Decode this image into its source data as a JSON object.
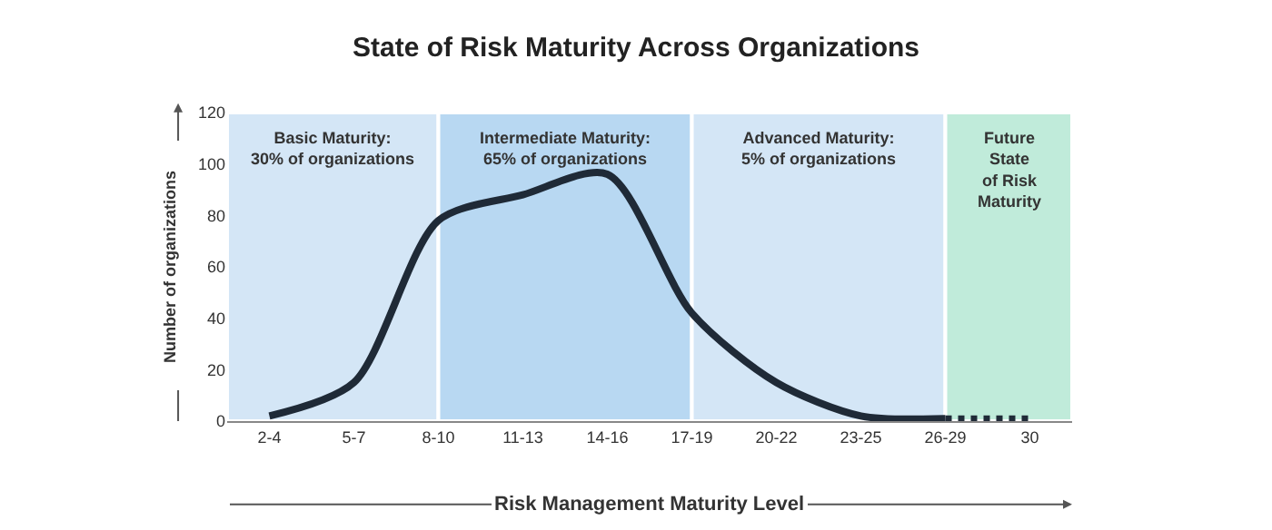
{
  "chart_data": {
    "type": "line",
    "title": "State of Risk Maturity Across Organizations",
    "xlabel": "Risk Management Maturity Level",
    "ylabel": "Number of organizations",
    "categories": [
      "2-4",
      "5-7",
      "8-10",
      "11-13",
      "14-16",
      "17-19",
      "20-22",
      "23-25",
      "26-29",
      "30"
    ],
    "series": [
      {
        "color": "#1f2a37",
        "line_style": "solid",
        "values": [
          2,
          15,
          78,
          88,
          96,
          42,
          15,
          2,
          1,
          null
        ]
      },
      {
        "color": "#1f2a37",
        "line_style": "dotted",
        "values": [
          null,
          null,
          null,
          null,
          null,
          null,
          null,
          null,
          1,
          1
        ]
      }
    ],
    "ylim": [
      0,
      120
    ],
    "yticks": [
      0,
      20,
      40,
      60,
      80,
      100,
      120
    ],
    "grid": false,
    "bands": [
      {
        "axis": "x",
        "from": "2-4",
        "to": "8-10",
        "label": "Basic Maturity:\n30% of organizations",
        "color": "#d4e6f6"
      },
      {
        "axis": "x",
        "from": "8-10",
        "to": "17-19",
        "label": "Intermediate Maturity:\n65% of organizations",
        "color": "#b8d8f2"
      },
      {
        "axis": "x",
        "from": "17-19",
        "to": "26-29",
        "label": "Advanced Maturity:\n5% of organizations",
        "color": "#d4e6f6"
      },
      {
        "axis": "x",
        "from": "26-29",
        "to": "30",
        "label": "Future\nState\nof Risk\nMaturity",
        "color": "#c0ebda"
      }
    ]
  }
}
